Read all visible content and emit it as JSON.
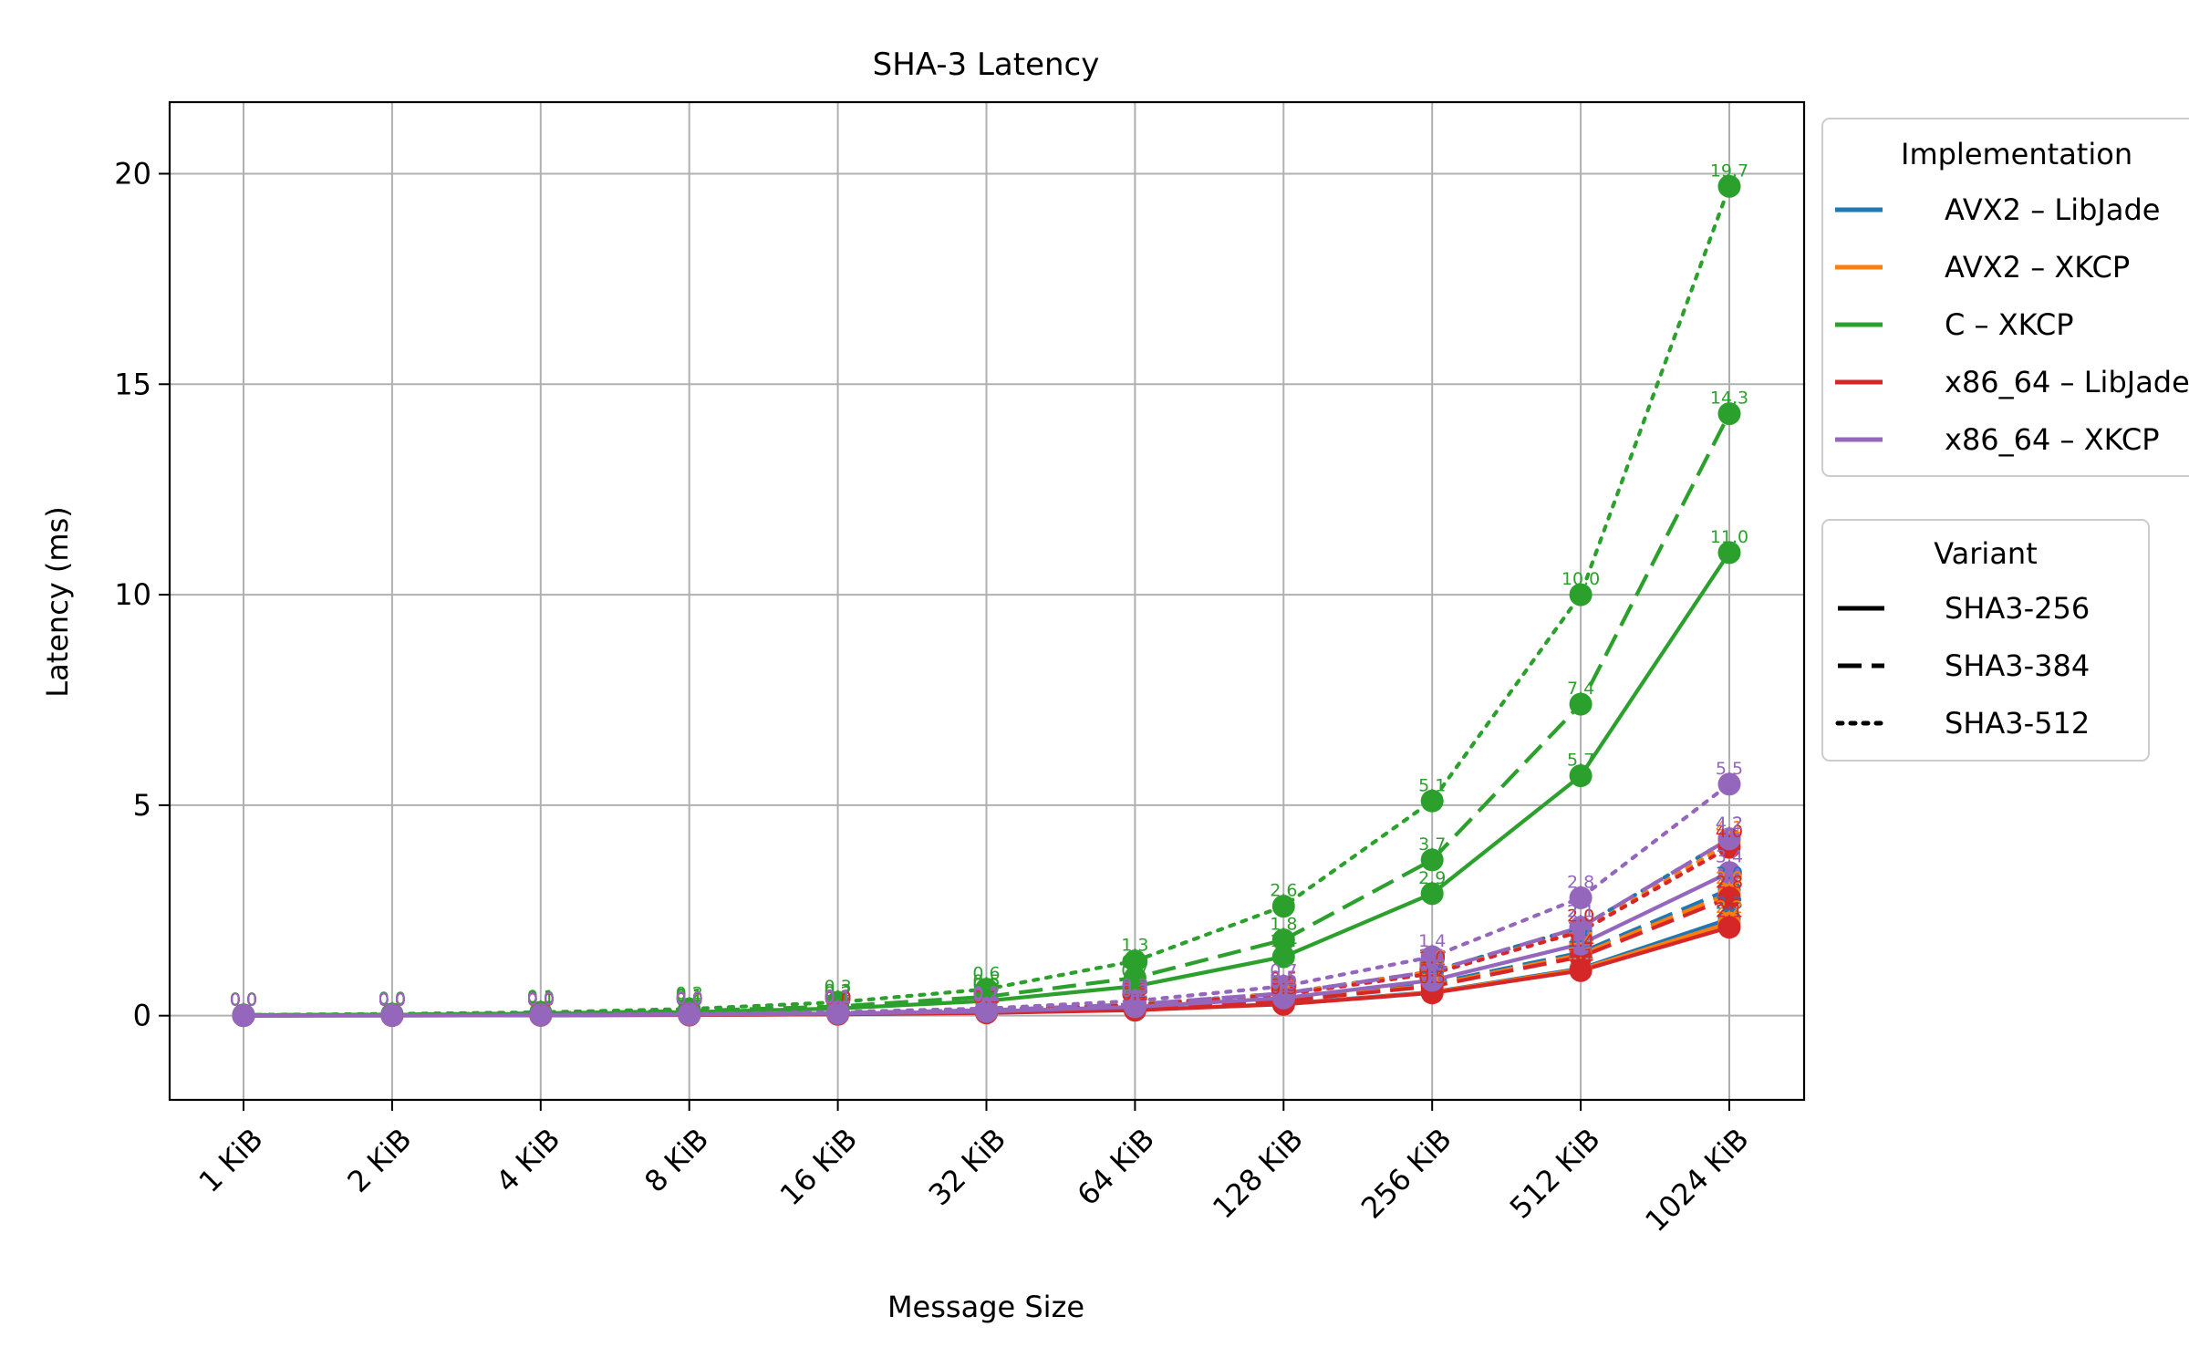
{
  "chart_data": {
    "type": "line",
    "title": "SHA-3 Latency",
    "xlabel": "Message Size",
    "ylabel": "Latency (ms)",
    "categories": [
      "1 KiB",
      "2 KiB",
      "4 KiB",
      "8 KiB",
      "16 KiB",
      "32 KiB",
      "64 KiB",
      "128 KiB",
      "256 KiB",
      "512 KiB",
      "1024 KiB"
    ],
    "ylim": [
      -2,
      21.7
    ],
    "yticks": [
      0,
      5,
      10,
      15,
      20
    ],
    "grid": true,
    "legend_placement": "outside right",
    "implementations": [
      {
        "name": "AVX2 – LibJade",
        "color": "#1f77b4"
      },
      {
        "name": "AVX2 – XKCP",
        "color": "#ff7f0e"
      },
      {
        "name": "C – XKCP",
        "color": "#2ca02c"
      },
      {
        "name": "x86_64 – LibJade",
        "color": "#d62728"
      },
      {
        "name": "x86_64 – XKCP",
        "color": "#9467bd"
      }
    ],
    "variants": [
      {
        "name": "SHA3-256",
        "dash": "solid"
      },
      {
        "name": "SHA3-384",
        "dash": "dashed"
      },
      {
        "name": "SHA3-512",
        "dash": "dotted"
      }
    ],
    "series": [
      {
        "implementation": 0,
        "variant": 0,
        "values": [
          0.002,
          0.004,
          0.009,
          0.017,
          0.035,
          0.07,
          0.14,
          0.28,
          0.56,
          1.12,
          2.3
        ]
      },
      {
        "implementation": 0,
        "variant": 1,
        "values": [
          0.003,
          0.006,
          0.012,
          0.024,
          0.047,
          0.095,
          0.19,
          0.38,
          0.76,
          1.5,
          3.0
        ]
      },
      {
        "implementation": 0,
        "variant": 2,
        "values": [
          0.004,
          0.008,
          0.016,
          0.033,
          0.066,
          0.13,
          0.27,
          0.53,
          1.05,
          2.1,
          4.2
        ]
      },
      {
        "implementation": 1,
        "variant": 0,
        "values": [
          0.002,
          0.004,
          0.009,
          0.017,
          0.034,
          0.068,
          0.14,
          0.27,
          0.55,
          1.1,
          2.2
        ]
      },
      {
        "implementation": 1,
        "variant": 1,
        "values": [
          0.003,
          0.006,
          0.011,
          0.023,
          0.045,
          0.09,
          0.18,
          0.36,
          0.72,
          1.45,
          2.9
        ]
      },
      {
        "implementation": 1,
        "variant": 2,
        "values": [
          0.004,
          0.008,
          0.016,
          0.032,
          0.064,
          0.13,
          0.26,
          0.52,
          1.04,
          2.0,
          4.1
        ]
      },
      {
        "implementation": 2,
        "variant": 0,
        "values": [
          0.011,
          0.021,
          0.043,
          0.086,
          0.17,
          0.35,
          0.7,
          1.4,
          2.9,
          5.7,
          11.0
        ]
      },
      {
        "implementation": 2,
        "variant": 1,
        "values": [
          0.014,
          0.028,
          0.056,
          0.11,
          0.22,
          0.45,
          0.9,
          1.8,
          3.7,
          7.4,
          14.3
        ]
      },
      {
        "implementation": 2,
        "variant": 2,
        "values": [
          0.02,
          0.04,
          0.08,
          0.16,
          0.32,
          0.63,
          1.3,
          2.6,
          5.1,
          10.0,
          19.7
        ]
      },
      {
        "implementation": 3,
        "variant": 0,
        "values": [
          0.002,
          0.004,
          0.008,
          0.016,
          0.033,
          0.066,
          0.13,
          0.27,
          0.54,
          1.07,
          2.1
        ]
      },
      {
        "implementation": 3,
        "variant": 1,
        "values": [
          0.003,
          0.005,
          0.011,
          0.022,
          0.044,
          0.088,
          0.18,
          0.35,
          0.7,
          1.4,
          2.8
        ]
      },
      {
        "implementation": 3,
        "variant": 2,
        "values": [
          0.004,
          0.008,
          0.015,
          0.031,
          0.062,
          0.12,
          0.25,
          0.5,
          1.0,
          2.0,
          4.0
        ]
      },
      {
        "implementation": 4,
        "variant": 0,
        "values": [
          0.003,
          0.006,
          0.013,
          0.026,
          0.052,
          0.1,
          0.21,
          0.42,
          0.84,
          1.7,
          3.4
        ]
      },
      {
        "implementation": 4,
        "variant": 1,
        "values": [
          0.004,
          0.008,
          0.016,
          0.033,
          0.066,
          0.13,
          0.27,
          0.53,
          1.05,
          2.1,
          4.2
        ]
      },
      {
        "implementation": 4,
        "variant": 2,
        "values": [
          0.005,
          0.011,
          0.022,
          0.043,
          0.086,
          0.17,
          0.35,
          0.7,
          1.4,
          2.8,
          5.5
        ]
      }
    ]
  },
  "legend": {
    "implementation_title": "Implementation",
    "variant_title": "Variant"
  }
}
